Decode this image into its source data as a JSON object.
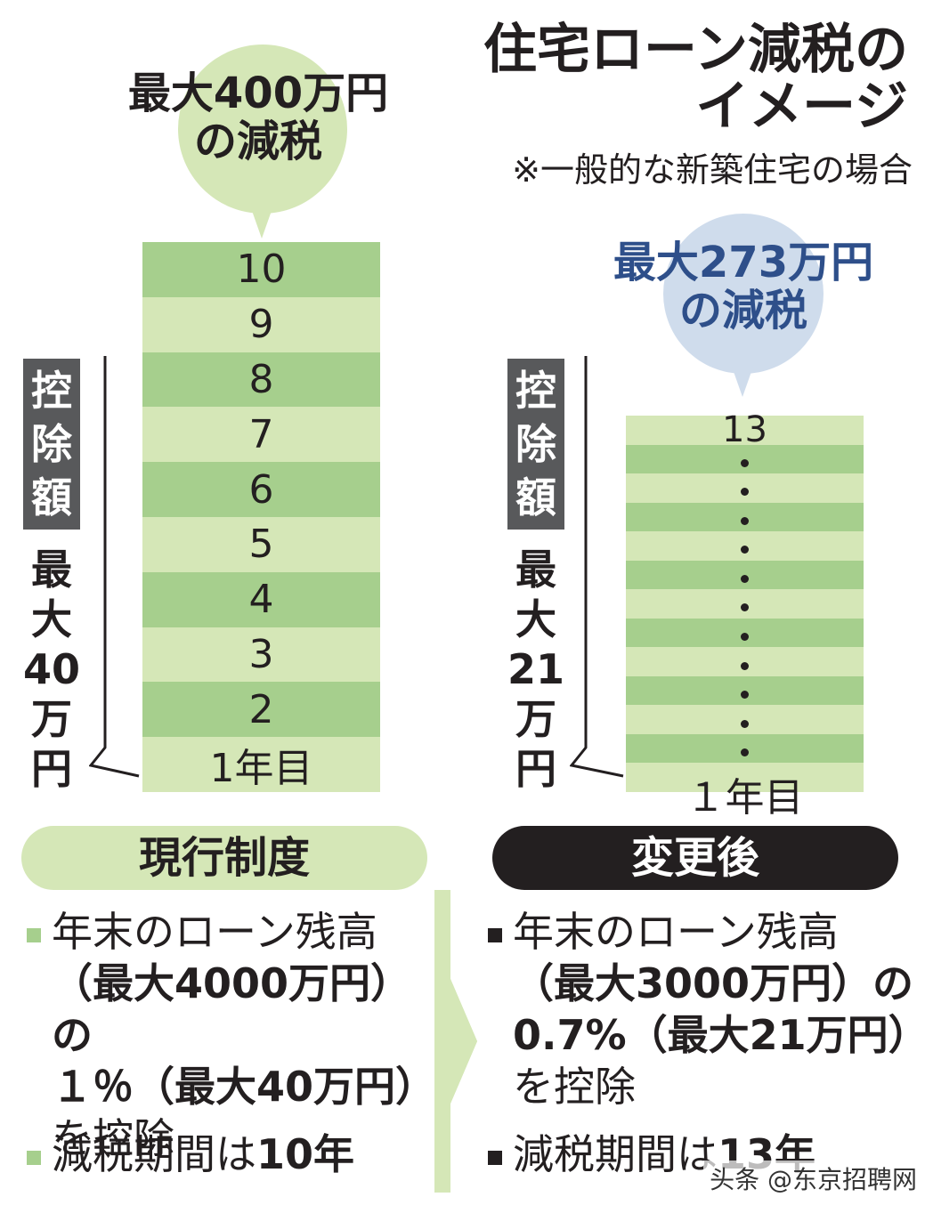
{
  "title": {
    "line1": "住宅ローン減税の",
    "line2": "イメージ"
  },
  "note": "※一般的な新築住宅の場合",
  "current": {
    "bubble_line1": "最大400万円",
    "bubble_line2": "の減税",
    "years": [
      "10",
      "9",
      "8",
      "7",
      "6",
      "5",
      "4",
      "3",
      "2",
      "1年目"
    ],
    "side_label": [
      "控",
      "除",
      "額"
    ],
    "side_amount": [
      "最",
      "大",
      "40",
      "万",
      "円"
    ],
    "system_label": "現行制度",
    "bullets": {
      "b1_line1": "年末のローン残高",
      "b1_line2": "（最大4000万円）の",
      "b1_line3": "１％（最大40万円）",
      "b1_line4": "を控除",
      "b2_prefix": "減税期間は",
      "b2_value": "10年"
    }
  },
  "after": {
    "bubble_line1": "最大273万円",
    "bubble_line2": "の減税",
    "top_year": "13",
    "bottom_year": "１年目",
    "side_label": [
      "控",
      "除",
      "額"
    ],
    "side_amount": [
      "最",
      "大",
      "21",
      "万",
      "円"
    ],
    "system_label": "変更後",
    "bullets": {
      "b1_line1": "年末のローン残高",
      "b1_line2": "（最大3000万円）の",
      "b1_line3": "0.7%（最大21万円）",
      "b1_line4": "を控除",
      "b2_prefix": "減税期間は",
      "b2_value": "13年"
    }
  },
  "watermark": "头条 @东京招聘网",
  "colors": {
    "green_dark": "#a6cf8d",
    "green_light": "#d5e7b7",
    "bubble_green": "#d5e7b7",
    "bubble_blue": "#cfdcec",
    "blue_text": "#2e4f8a",
    "gray_label": "#58595b",
    "pill_black": "#231f20"
  }
}
